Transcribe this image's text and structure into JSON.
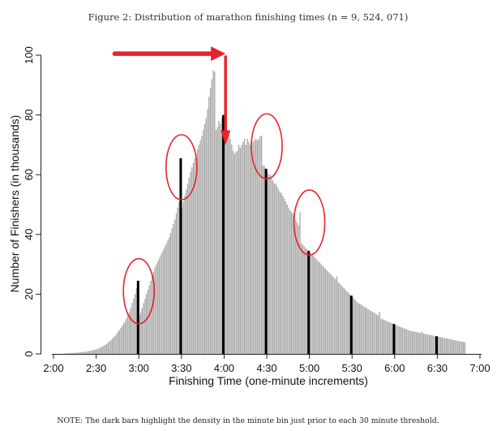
{
  "chart_data": {
    "type": "bar",
    "title": "Figure 2: Distribution of marathon finishing times (n = 9, 524, 071)",
    "xlabel": "Finishing Time (one-minute increments)",
    "ylabel": "Number of Finishers (in thousands)",
    "note": "NOTE: The dark bars highlight the density in the minute bin just prior to each 30 minute threshold.",
    "xlim": [
      120,
      420
    ],
    "ylim": [
      0,
      100
    ],
    "x_unit": "minutes",
    "x_ticks": [
      {
        "value": 120,
        "label": "2:00"
      },
      {
        "value": 150,
        "label": "2:30"
      },
      {
        "value": 180,
        "label": "3:00"
      },
      {
        "value": 210,
        "label": "3:30"
      },
      {
        "value": 240,
        "label": "4:00"
      },
      {
        "value": 270,
        "label": "4:30"
      },
      {
        "value": 300,
        "label": "5:00"
      },
      {
        "value": 330,
        "label": "5:30"
      },
      {
        "value": 360,
        "label": "6:00"
      },
      {
        "value": 390,
        "label": "6:30"
      },
      {
        "value": 420,
        "label": "7:00"
      }
    ],
    "y_ticks": [
      {
        "value": 0,
        "label": "0"
      },
      {
        "value": 20,
        "label": "20"
      },
      {
        "value": 40,
        "label": "40"
      },
      {
        "value": 60,
        "label": "60"
      },
      {
        "value": 80,
        "label": "80"
      },
      {
        "value": 100,
        "label": "100"
      }
    ],
    "grid": false,
    "bar_color": "#a6a6a6",
    "highlight_color": "#000000",
    "annotation_color": "#e8232a",
    "series": [
      {
        "x_start": 120,
        "values": [
          0,
          0,
          0,
          0,
          0,
          0,
          0,
          0.1,
          0.1,
          0.2,
          0.2,
          0.2,
          0.3,
          0.3,
          0.3,
          0.4,
          0.4,
          0.5,
          0.5,
          0.6,
          0.6,
          0.7,
          0.7,
          0.8,
          0.9,
          1,
          1.1,
          1.2,
          1.3,
          1.4,
          1.6,
          1.8,
          2,
          2.2,
          2.5,
          2.8,
          3,
          3.4,
          3.8,
          4.2,
          4.6,
          5.1,
          5.6,
          6.1,
          6.7,
          7.4,
          8,
          8.7,
          9.5,
          10.3,
          11,
          12,
          13,
          14,
          15.5,
          17,
          18.5,
          20,
          22,
          24.5,
          13,
          14,
          15.5,
          17,
          18.5,
          20,
          21.5,
          23,
          24.5,
          26,
          27.5,
          29,
          30,
          31,
          32,
          33,
          34,
          35,
          36,
          37,
          38,
          39,
          40.5,
          42,
          43.5,
          45,
          47,
          49,
          51,
          65.5,
          49,
          51,
          53,
          55,
          57,
          59,
          61,
          62.5,
          64,
          65.5,
          67,
          68.5,
          70,
          71.5,
          73,
          75,
          77,
          79,
          82,
          86,
          89,
          92,
          95,
          94.5,
          75,
          76,
          78,
          77,
          79,
          80,
          78,
          76,
          75,
          74,
          72,
          70,
          68,
          67,
          67.5,
          68,
          70,
          69,
          70,
          71,
          72,
          70,
          72,
          71,
          70,
          72,
          71,
          71.5,
          72,
          71.5,
          72,
          73,
          73,
          63,
          63,
          62,
          61,
          60,
          60,
          59,
          58,
          57,
          57,
          56,
          55,
          54,
          54,
          53,
          52,
          51,
          50,
          49,
          48,
          47.5,
          47,
          46,
          45,
          44,
          43,
          47.5,
          37,
          36.5,
          36,
          35.5,
          35,
          34.5,
          34,
          33.5,
          33,
          32.5,
          32,
          31.5,
          31,
          30.5,
          30,
          29.5,
          29,
          28.5,
          28,
          27.5,
          27,
          26.5,
          26,
          25.5,
          25,
          26,
          24,
          23.5,
          23,
          22.5,
          22,
          21.5,
          21,
          20.5,
          20,
          19.5,
          19,
          18.5,
          18,
          17.5,
          17,
          16.8,
          16.5,
          16.2,
          15.9,
          15.6,
          15.3,
          15,
          14.7,
          14.4,
          14.1,
          13.8,
          13.5,
          13.2,
          12.9,
          14,
          11.8,
          11.6,
          11.4,
          11.2,
          11,
          10.8,
          10.6,
          10.4,
          10.2,
          10,
          9.8,
          9.6,
          9.4,
          9.2,
          9,
          8.8,
          8.6,
          8.4,
          8.2,
          8,
          7.8,
          7.7,
          7.6,
          7.5,
          7.4,
          7.3,
          7.2,
          7.1,
          7,
          7.5,
          6.8,
          6.7,
          6.6,
          6.5,
          6.4,
          6.3,
          6.2,
          6.1,
          6,
          5.9,
          5.8,
          5.7,
          5.6,
          5.5,
          5.4,
          5.3,
          5.2,
          5.1,
          5,
          4.9,
          4.8,
          4.7,
          4.6,
          4.5,
          4.4,
          4.3,
          4.2,
          4.1,
          4,
          3.9
        ],
        "highlight_x": [
          179,
          209,
          239,
          269,
          299,
          329,
          359,
          389
        ]
      }
    ],
    "annotations": [
      {
        "type": "ellipse",
        "x": 180,
        "y": 21
      },
      {
        "type": "ellipse",
        "x": 210,
        "y": 62.5
      },
      {
        "type": "ellipse",
        "x": 270,
        "y": 69.5
      },
      {
        "type": "ellipse",
        "x": 300,
        "y": 44
      },
      {
        "type": "arrow",
        "direction": "right",
        "x_from": 163,
        "x_to": 233,
        "y": 100.5
      },
      {
        "type": "arrow",
        "direction": "down",
        "x": 241,
        "y_from": 99.5,
        "y_to": 71
      }
    ]
  }
}
